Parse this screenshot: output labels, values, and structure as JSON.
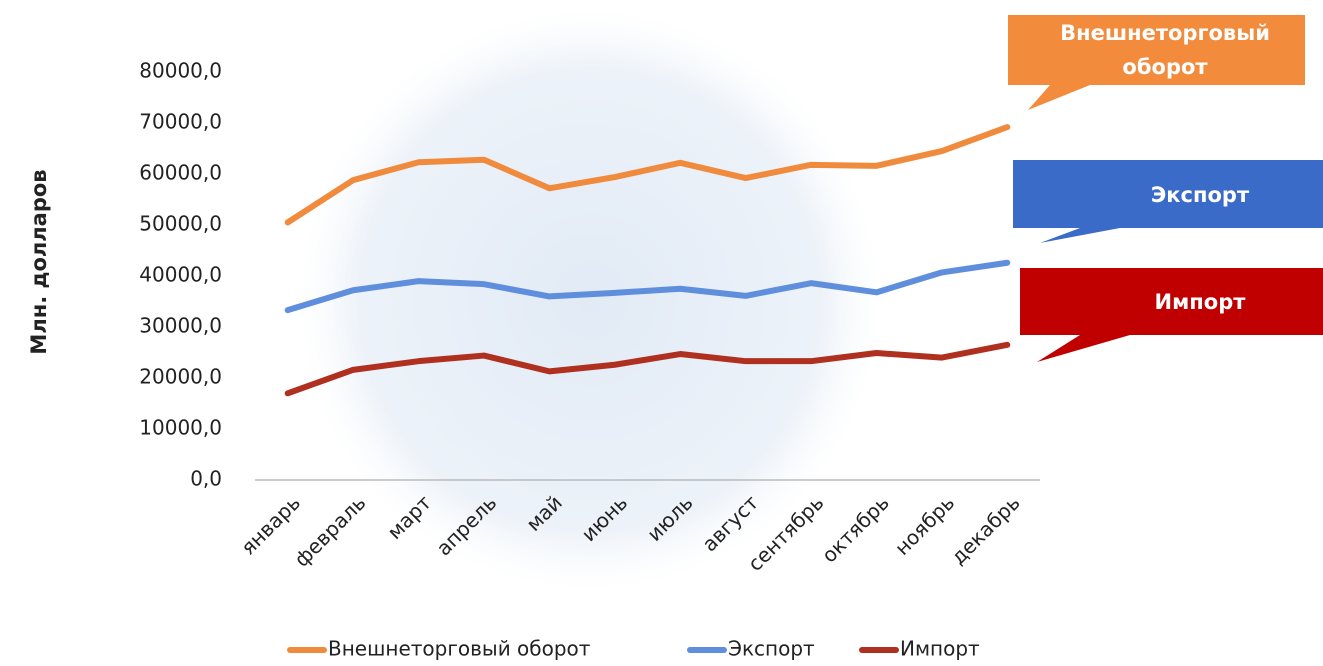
{
  "chart_data": {
    "type": "line",
    "categories": [
      "январь",
      "февраль",
      "март",
      "апрель",
      "май",
      "июнь",
      "июль",
      "август",
      "сентябрь",
      "октябрь",
      "ноябрь",
      "декабрь"
    ],
    "series": [
      {
        "name": "Внешнеторговый оборот",
        "color": "#f08a3c",
        "values": [
          50500,
          58800,
          62300,
          62800,
          57200,
          59400,
          62200,
          59200,
          61800,
          61600,
          64500,
          69200
        ]
      },
      {
        "name": "Экспорт",
        "color": "#5f8fdc",
        "values": [
          33300,
          37200,
          39000,
          38400,
          36000,
          36700,
          37500,
          36100,
          38600,
          36800,
          40700,
          42600
        ]
      },
      {
        "name": "Импорт",
        "color": "#b0301f",
        "values": [
          17000,
          21600,
          23300,
          24400,
          21300,
          22600,
          24700,
          23300,
          23300,
          24900,
          24000,
          26500
        ]
      }
    ],
    "y_label": "Млн. долларов",
    "ylim": [
      0,
      80000
    ],
    "yticks": [
      {
        "value": 0,
        "label": "0,0"
      },
      {
        "value": 10000,
        "label": "10000,0"
      },
      {
        "value": 20000,
        "label": "20000,0"
      },
      {
        "value": 30000,
        "label": "30000,0"
      },
      {
        "value": 40000,
        "label": "40000,0"
      },
      {
        "value": 50000,
        "label": "50000,0"
      },
      {
        "value": 60000,
        "label": "60000,0"
      },
      {
        "value": 70000,
        "label": "70000,0"
      },
      {
        "value": 80000,
        "label": "80000,0"
      }
    ],
    "legend": "bottom",
    "callout_colors": [
      "#f28b3c",
      "#3a6bc9",
      "#c00000"
    ]
  }
}
